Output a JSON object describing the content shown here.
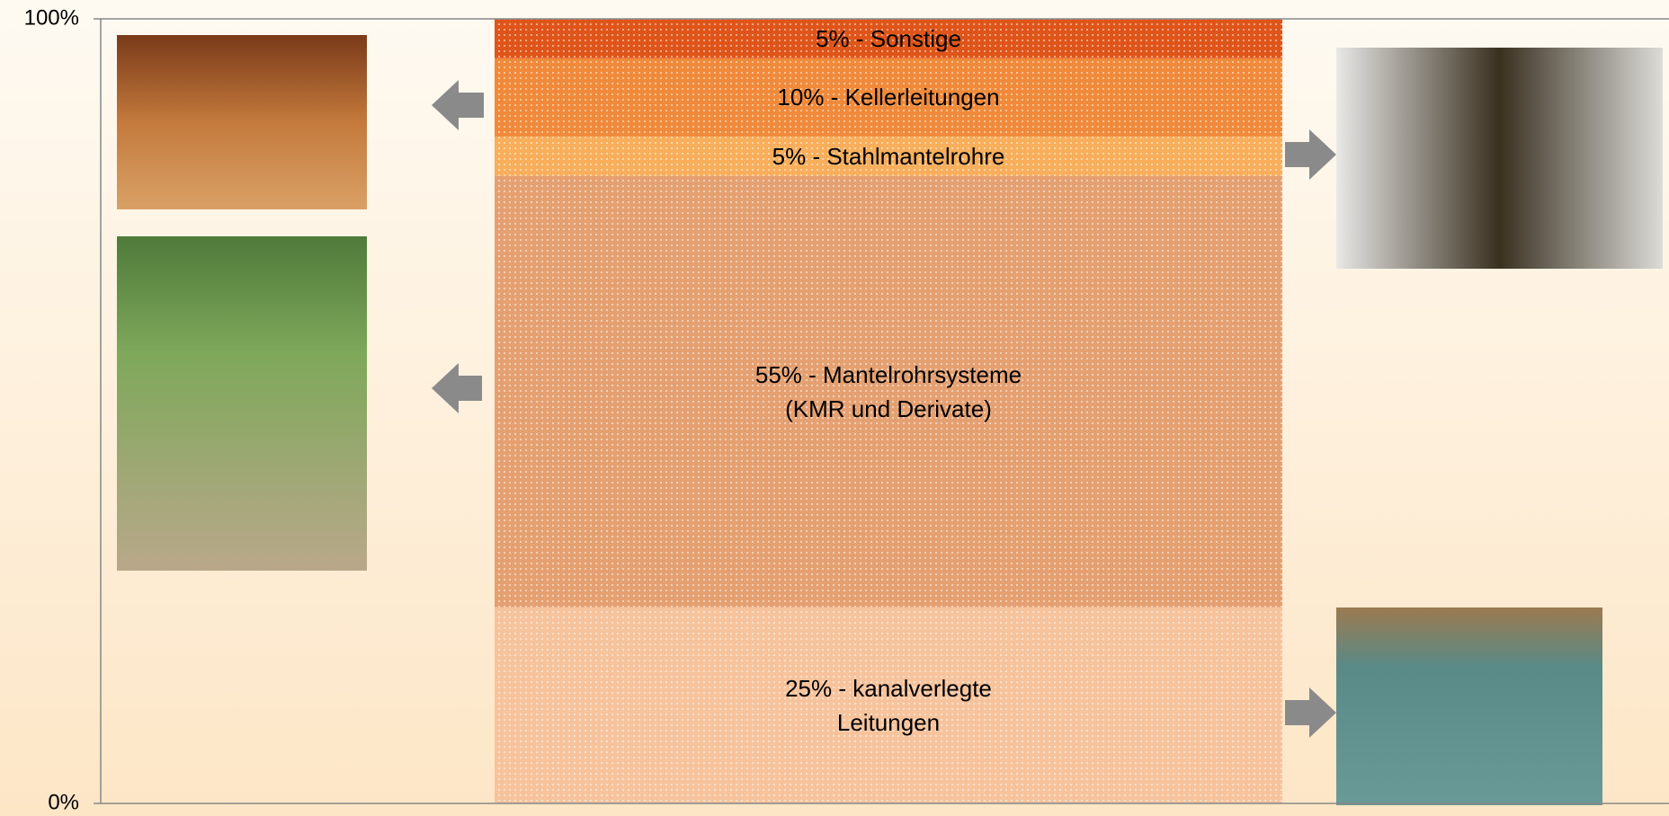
{
  "chart_data": {
    "type": "stacked_bar",
    "ylim": [
      0,
      100
    ],
    "yticks": [
      {
        "value": 0,
        "label": "0%"
      },
      {
        "value": 100,
        "label": "100%"
      }
    ],
    "grid": true,
    "series": [
      {
        "values": [
          25
        ],
        "value_labels": [
          "25% - kanalverlegte\nLeitungen"
        ],
        "color": "#f6c39c"
      },
      {
        "values": [
          55
        ],
        "value_labels": [
          "55% - Mantelrohrsysteme\n(KMR und Derivate)"
        ],
        "color": "#e5a071"
      },
      {
        "values": [
          5
        ],
        "value_labels": [
          "5% - Stahlmantelrohre"
        ],
        "color": "#f8ae5a"
      },
      {
        "values": [
          10
        ],
        "value_labels": [
          "10% - Kellerleitungen"
        ],
        "color": "#f08a3a"
      },
      {
        "values": [
          5
        ],
        "value_labels": [
          "5% - Sonstige"
        ],
        "color": "#df5418"
      }
    ]
  }
}
